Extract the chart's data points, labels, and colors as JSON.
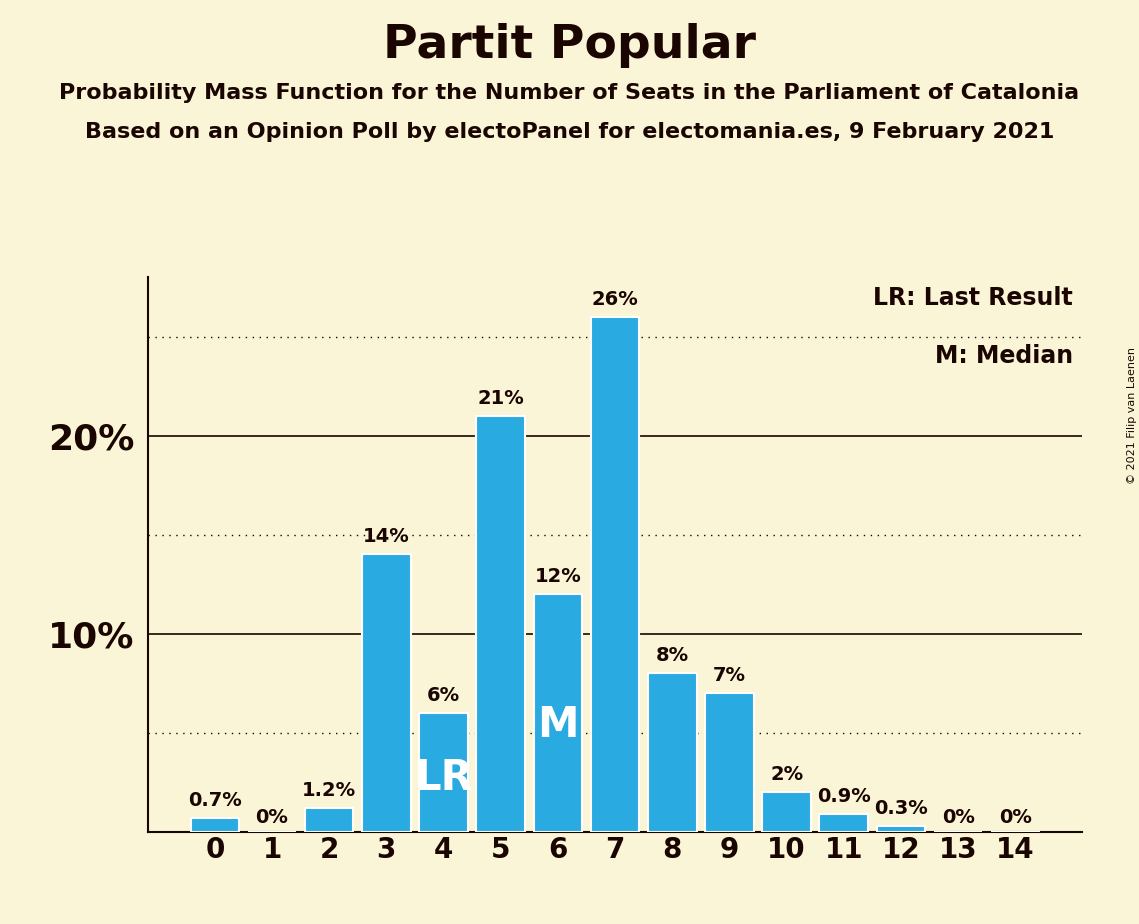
{
  "title": "Partit Popular",
  "subtitle1": "Probability Mass Function for the Number of Seats in the Parliament of Catalonia",
  "subtitle2": "Based on an Opinion Poll by electoPanel for electomania.es, 9 February 2021",
  "copyright": "© 2021 Filip van Laenen",
  "categories": [
    0,
    1,
    2,
    3,
    4,
    5,
    6,
    7,
    8,
    9,
    10,
    11,
    12,
    13,
    14
  ],
  "values": [
    0.7,
    0.0,
    1.2,
    14.0,
    6.0,
    21.0,
    12.0,
    26.0,
    8.0,
    7.0,
    2.0,
    0.9,
    0.3,
    0.0,
    0.0
  ],
  "labels": [
    "0.7%",
    "0%",
    "1.2%",
    "14%",
    "6%",
    "21%",
    "12%",
    "26%",
    "8%",
    "7%",
    "2%",
    "0.9%",
    "0.3%",
    "0%",
    "0%"
  ],
  "bar_color": "#29abe2",
  "background_color": "#faf5d7",
  "text_color": "#1a0500",
  "bar_edge_color": "#ffffff",
  "lr_seat": 4,
  "median_seat": 6,
  "legend_lr": "LR: Last Result",
  "legend_m": "M: Median",
  "ylim": [
    0,
    28
  ],
  "solid_yticks": [
    10,
    20
  ],
  "dotted_yticks": [
    5,
    15,
    25
  ],
  "title_fontsize": 34,
  "subtitle_fontsize": 16,
  "label_fontsize": 14,
  "axis_tick_fontsize": 20,
  "ytick_fontsize": 26,
  "legend_fontsize": 17,
  "lr_m_fontsize": 30,
  "copyright_fontsize": 8
}
